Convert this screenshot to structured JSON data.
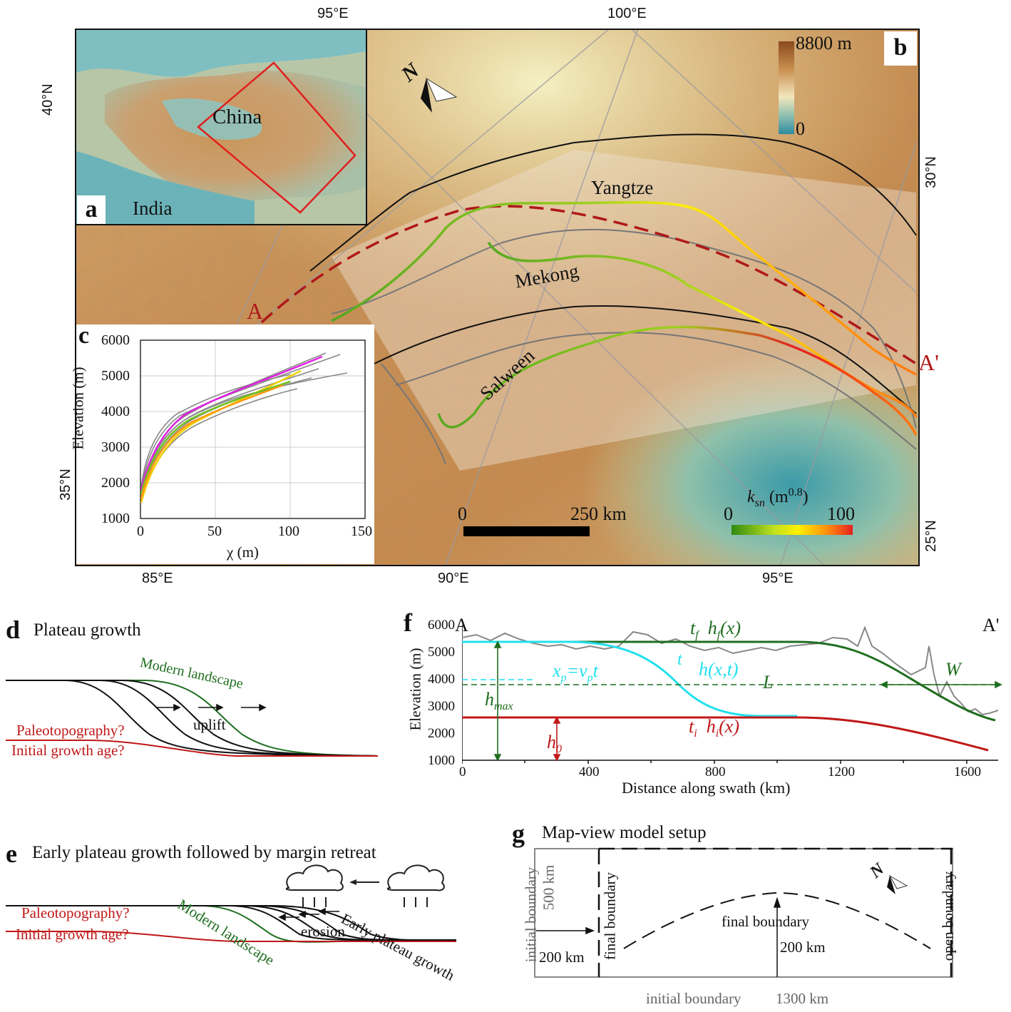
{
  "panel_b": {
    "letter": "b",
    "top_ticks": [
      "95°E",
      "100°E"
    ],
    "bottom_ticks": [
      "85°E",
      "90°E",
      "95°E"
    ],
    "left_ticks": [
      "40°N",
      "35°N"
    ],
    "right_ticks": [
      "30°N",
      "25°N"
    ],
    "elevation_legend": {
      "max": "8800 m",
      "min": "0"
    },
    "north_label": "N",
    "rivers": [
      "Yangtze",
      "Mekong",
      "Salween"
    ],
    "profile_start": "A",
    "profile_end": "A'",
    "scale_bar": {
      "start": "0",
      "end": "250 km"
    },
    "ksn_legend": {
      "label": "k",
      "subscript": "sn",
      "unit": " (m",
      "exponent": "0.8",
      "close": ")",
      "min": "0",
      "max": "100"
    },
    "colors": {
      "ksn_low": "#2f8a10",
      "ksn_mid": "#fff000",
      "ksn_high": "#e52020",
      "profile_line": "#b01818",
      "basin_outline": "#111111",
      "subbasin_outline": "#777777"
    }
  },
  "panel_a": {
    "letter": "a",
    "labels": [
      "China",
      "India"
    ],
    "box_color": "#e02020"
  },
  "panel_c": {
    "letter": "c",
    "ylabel": "Elevation (m)",
    "xlabel": "χ (m)",
    "yticks": [
      "1000",
      "2000",
      "3000",
      "4000",
      "5000",
      "6000"
    ],
    "xticks": [
      "0",
      "50",
      "100",
      "150"
    ]
  },
  "panel_d": {
    "letter": "d",
    "title": "Plateau growth",
    "labels": {
      "modern": "Modern landscape",
      "uplift": "uplift",
      "paleo": "Paleotopography?",
      "age": "Initial growth age?"
    }
  },
  "panel_e": {
    "letter": "e",
    "title": "Early plateau growth followed by margin retreat",
    "labels": {
      "modern": "Modern landscape",
      "erosion": "erosion",
      "early": "Early plateau growth",
      "paleo": "Paleotopography?",
      "age": "Initial growth age?"
    }
  },
  "panel_f": {
    "letter": "f",
    "start": "A",
    "end": "A'",
    "ylabel": "Elevation (m)",
    "xlabel": "Distance along swath (km)",
    "yticks": [
      "1000",
      "2000",
      "3000",
      "4000",
      "5000",
      "6000"
    ],
    "xticks": [
      "0",
      "400",
      "800",
      "1200",
      "1600"
    ],
    "labels": {
      "tf": "t",
      "tf_sub": "f",
      "hf": "h",
      "hf_sub": "f",
      "hf_arg": "(x)",
      "t": "t",
      "hxt": "h(x,t)",
      "xp": "x",
      "xp_sub": "p",
      "xp_eq": "=v",
      "vp_sub": "p",
      "xp_t": "t",
      "L": "L",
      "W": "W",
      "hmax": "h",
      "hmax_sub": "max",
      "h0": "h",
      "h0_sub": "0",
      "ti": "t",
      "ti_sub": "i",
      "hi": "h",
      "hi_sub": "i",
      "hi_arg": "(x)"
    },
    "colors": {
      "final": "#1f6e1f",
      "evolving": "#22e0ee",
      "initial": "#c01818",
      "swath": "#888888"
    }
  },
  "panel_g": {
    "letter": "g",
    "title": "Map-view model setup",
    "labels": {
      "initial_left": "initial boundary",
      "km500": "500 km",
      "final_left": "final boundary",
      "km200_left": "200 km",
      "final_center": "final boundary",
      "km200_center": "200 km",
      "open": "open boundary",
      "initial_bottom": "initial boundary",
      "km1300": "1300 km",
      "north": "N"
    }
  }
}
